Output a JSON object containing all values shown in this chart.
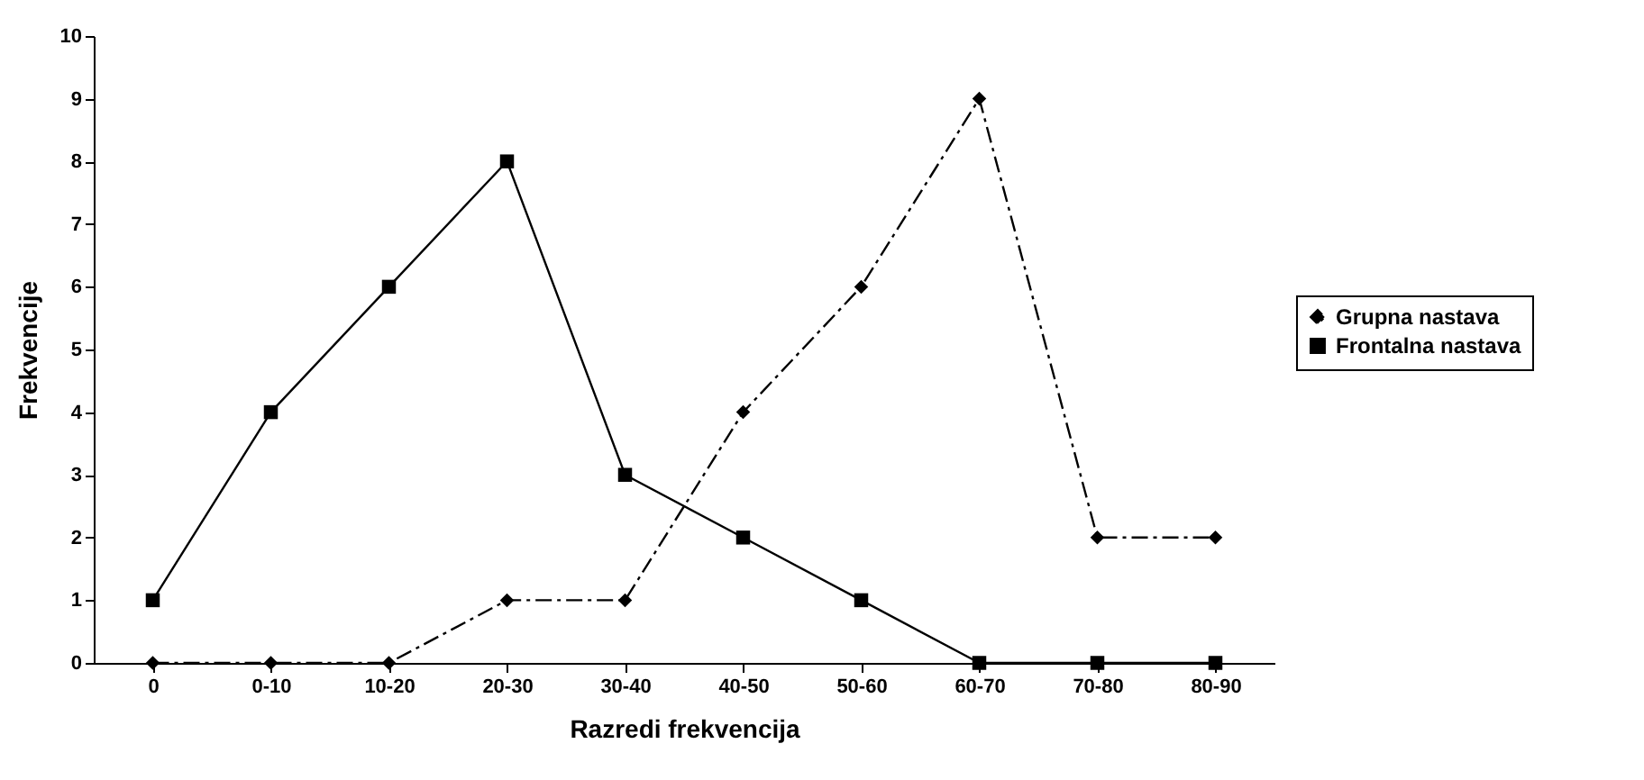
{
  "chart_data": {
    "type": "line",
    "xlabel": "Razredi frekvencija",
    "ylabel": "Frekvencije",
    "categories": [
      "0",
      "0-10",
      "10-20",
      "20-30",
      "30-40",
      "40-50",
      "50-60",
      "60-70",
      "70-80",
      "80-90"
    ],
    "series": [
      {
        "name": "Grupna nastava",
        "color": "#000000",
        "marker": "diamond",
        "line_style": "dashed",
        "values": [
          0,
          0,
          0,
          1,
          1,
          4,
          6,
          9,
          2,
          2
        ]
      },
      {
        "name": "Frontalna nastava",
        "color": "#000000",
        "marker": "square",
        "line_style": "solid",
        "values": [
          1,
          4,
          6,
          8,
          3,
          2,
          1,
          0,
          0,
          0
        ]
      }
    ],
    "ylim": [
      0,
      10
    ],
    "yticks": [
      0,
      1,
      2,
      3,
      4,
      5,
      6,
      7,
      8,
      9,
      10
    ],
    "grid": false,
    "legend": "right"
  }
}
